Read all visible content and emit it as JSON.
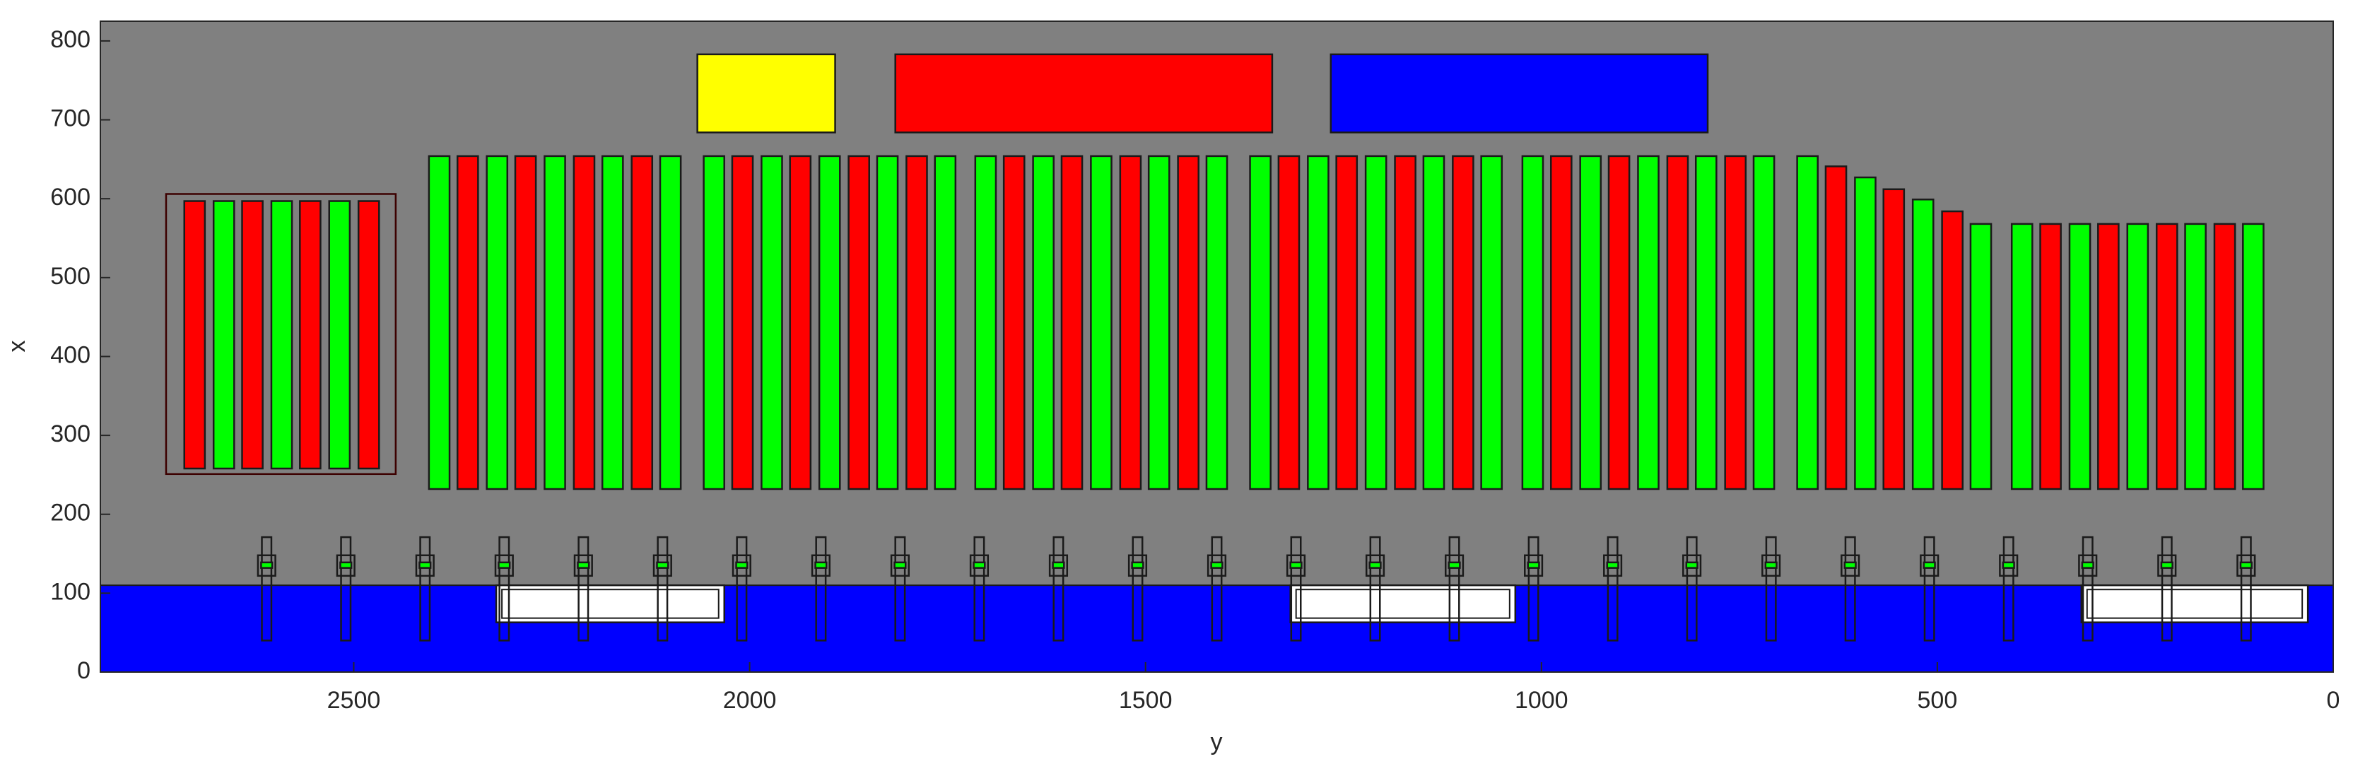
{
  "chart_data": {
    "type": "rectangles",
    "xlabel": "y",
    "ylabel": "x",
    "xlim": [
      0,
      2820
    ],
    "xreverse": true,
    "ylim": [
      0,
      825
    ],
    "xticks": [
      0,
      500,
      1000,
      1500,
      2000,
      2500
    ],
    "yticks": [
      0,
      100,
      200,
      300,
      400,
      500,
      600,
      700,
      800
    ],
    "background": "#808080",
    "rects": [
      {
        "x": [
          0,
          2820
        ],
        "y": [
          0,
          110
        ],
        "color": "#0000ff"
      },
      {
        "x": [
          2032,
          2320
        ],
        "y": [
          63,
          110
        ],
        "color": "#ffffff"
      },
      {
        "x": [
          1033,
          1317
        ],
        "y": [
          63,
          110
        ],
        "color": "#ffffff"
      },
      {
        "x": [
          32,
          318
        ],
        "y": [
          63,
          110
        ],
        "color": "#ffffff"
      },
      {
        "x": [
          1892,
          2066
        ],
        "y": [
          684,
          783
        ],
        "color": "#ffff00"
      },
      {
        "x": [
          1340,
          1816
        ],
        "y": [
          684,
          783
        ],
        "color": "#ff0000"
      },
      {
        "x": [
          790,
          1266
        ],
        "y": [
          684,
          783
        ],
        "color": "#0000ff"
      },
      {
        "x": [
          2447,
          2737
        ],
        "y": [
          251,
          606
        ],
        "color": "none"
      },
      {
        "x": [
          2688,
          2714
        ],
        "y": [
          258,
          597
        ],
        "color": "#ff0000"
      },
      {
        "x": [
          2651,
          2677
        ],
        "y": [
          258,
          597
        ],
        "color": "#00ff00"
      },
      {
        "x": [
          2615,
          2641
        ],
        "y": [
          258,
          597
        ],
        "color": "#ff0000"
      },
      {
        "x": [
          2578,
          2604
        ],
        "y": [
          258,
          597
        ],
        "color": "#00ff00"
      },
      {
        "x": [
          2542,
          2568
        ],
        "y": [
          258,
          597
        ],
        "color": "#ff0000"
      },
      {
        "x": [
          2505,
          2531
        ],
        "y": [
          258,
          597
        ],
        "color": "#00ff00"
      },
      {
        "x": [
          2468,
          2494
        ],
        "y": [
          258,
          597
        ],
        "color": "#ff0000"
      },
      {
        "x": [
          2379,
          2405
        ],
        "y": [
          232,
          654
        ],
        "color": "#00ff00"
      },
      {
        "x": [
          2343,
          2369
        ],
        "y": [
          232,
          654
        ],
        "color": "#ff0000"
      },
      {
        "x": [
          2306,
          2332
        ],
        "y": [
          232,
          654
        ],
        "color": "#00ff00"
      },
      {
        "x": [
          2270,
          2296
        ],
        "y": [
          232,
          654
        ],
        "color": "#ff0000"
      },
      {
        "x": [
          2233,
          2259
        ],
        "y": [
          232,
          654
        ],
        "color": "#00ff00"
      },
      {
        "x": [
          2196,
          2222
        ],
        "y": [
          232,
          654
        ],
        "color": "#ff0000"
      },
      {
        "x": [
          2160,
          2186
        ],
        "y": [
          232,
          654
        ],
        "color": "#00ff00"
      },
      {
        "x": [
          2123,
          2149
        ],
        "y": [
          232,
          654
        ],
        "color": "#ff0000"
      },
      {
        "x": [
          2087,
          2113
        ],
        "y": [
          232,
          654
        ],
        "color": "#00ff00"
      },
      {
        "x": [
          2032,
          2058
        ],
        "y": [
          232,
          654
        ],
        "color": "#00ff00"
      },
      {
        "x": [
          1996,
          2022
        ],
        "y": [
          232,
          654
        ],
        "color": "#ff0000"
      },
      {
        "x": [
          1959,
          1985
        ],
        "y": [
          232,
          654
        ],
        "color": "#00ff00"
      },
      {
        "x": [
          1923,
          1949
        ],
        "y": [
          232,
          654
        ],
        "color": "#ff0000"
      },
      {
        "x": [
          1886,
          1912
        ],
        "y": [
          232,
          654
        ],
        "color": "#00ff00"
      },
      {
        "x": [
          1849,
          1875
        ],
        "y": [
          232,
          654
        ],
        "color": "#ff0000"
      },
      {
        "x": [
          1813,
          1839
        ],
        "y": [
          232,
          654
        ],
        "color": "#00ff00"
      },
      {
        "x": [
          1776,
          1802
        ],
        "y": [
          232,
          654
        ],
        "color": "#ff0000"
      },
      {
        "x": [
          1740,
          1766
        ],
        "y": [
          232,
          654
        ],
        "color": "#00ff00"
      },
      {
        "x": [
          1689,
          1715
        ],
        "y": [
          232,
          654
        ],
        "color": "#00ff00"
      },
      {
        "x": [
          1653,
          1679
        ],
        "y": [
          232,
          654
        ],
        "color": "#ff0000"
      },
      {
        "x": [
          1616,
          1642
        ],
        "y": [
          232,
          654
        ],
        "color": "#00ff00"
      },
      {
        "x": [
          1580,
          1606
        ],
        "y": [
          232,
          654
        ],
        "color": "#ff0000"
      },
      {
        "x": [
          1543,
          1569
        ],
        "y": [
          232,
          654
        ],
        "color": "#00ff00"
      },
      {
        "x": [
          1506,
          1532
        ],
        "y": [
          232,
          654
        ],
        "color": "#ff0000"
      },
      {
        "x": [
          1470,
          1496
        ],
        "y": [
          232,
          654
        ],
        "color": "#00ff00"
      },
      {
        "x": [
          1433,
          1459
        ],
        "y": [
          232,
          654
        ],
        "color": "#ff0000"
      },
      {
        "x": [
          1397,
          1423
        ],
        "y": [
          232,
          654
        ],
        "color": "#00ff00"
      },
      {
        "x": [
          1342,
          1368
        ],
        "y": [
          232,
          654
        ],
        "color": "#00ff00"
      },
      {
        "x": [
          1306,
          1332
        ],
        "y": [
          232,
          654
        ],
        "color": "#ff0000"
      },
      {
        "x": [
          1269,
          1295
        ],
        "y": [
          232,
          654
        ],
        "color": "#00ff00"
      },
      {
        "x": [
          1233,
          1259
        ],
        "y": [
          232,
          654
        ],
        "color": "#ff0000"
      },
      {
        "x": [
          1196,
          1222
        ],
        "y": [
          232,
          654
        ],
        "color": "#00ff00"
      },
      {
        "x": [
          1159,
          1185
        ],
        "y": [
          232,
          654
        ],
        "color": "#ff0000"
      },
      {
        "x": [
          1123,
          1149
        ],
        "y": [
          232,
          654
        ],
        "color": "#00ff00"
      },
      {
        "x": [
          1086,
          1112
        ],
        "y": [
          232,
          654
        ],
        "color": "#ff0000"
      },
      {
        "x": [
          1050,
          1076
        ],
        "y": [
          232,
          654
        ],
        "color": "#00ff00"
      },
      {
        "x": [
          998,
          1024
        ],
        "y": [
          232,
          654
        ],
        "color": "#00ff00"
      },
      {
        "x": [
          962,
          988
        ],
        "y": [
          232,
          654
        ],
        "color": "#ff0000"
      },
      {
        "x": [
          925,
          951
        ],
        "y": [
          232,
          654
        ],
        "color": "#00ff00"
      },
      {
        "x": [
          889,
          915
        ],
        "y": [
          232,
          654
        ],
        "color": "#ff0000"
      },
      {
        "x": [
          852,
          878
        ],
        "y": [
          232,
          654
        ],
        "color": "#00ff00"
      },
      {
        "x": [
          815,
          841
        ],
        "y": [
          232,
          654
        ],
        "color": "#ff0000"
      },
      {
        "x": [
          779,
          805
        ],
        "y": [
          232,
          654
        ],
        "color": "#00ff00"
      },
      {
        "x": [
          742,
          768
        ],
        "y": [
          232,
          654
        ],
        "color": "#ff0000"
      },
      {
        "x": [
          706,
          732
        ],
        "y": [
          232,
          654
        ],
        "color": "#00ff00"
      },
      {
        "x": [
          651,
          677
        ],
        "y": [
          232,
          654
        ],
        "color": "#00ff00"
      },
      {
        "x": [
          615,
          641
        ],
        "y": [
          232,
          641
        ],
        "color": "#ff0000"
      },
      {
        "x": [
          578,
          604
        ],
        "y": [
          232,
          627
        ],
        "color": "#00ff00"
      },
      {
        "x": [
          542,
          568
        ],
        "y": [
          232,
          612
        ],
        "color": "#ff0000"
      },
      {
        "x": [
          505,
          531
        ],
        "y": [
          232,
          599
        ],
        "color": "#00ff00"
      },
      {
        "x": [
          468,
          494
        ],
        "y": [
          232,
          584
        ],
        "color": "#ff0000"
      },
      {
        "x": [
          432,
          458
        ],
        "y": [
          232,
          568
        ],
        "color": "#00ff00"
      },
      {
        "x": [
          380,
          406
        ],
        "y": [
          232,
          568
        ],
        "color": "#00ff00"
      },
      {
        "x": [
          344,
          370
        ],
        "y": [
          232,
          568
        ],
        "color": "#ff0000"
      },
      {
        "x": [
          307,
          333
        ],
        "y": [
          232,
          568
        ],
        "color": "#00ff00"
      },
      {
        "x": [
          271,
          297
        ],
        "y": [
          232,
          568
        ],
        "color": "#ff0000"
      },
      {
        "x": [
          234,
          260
        ],
        "y": [
          232,
          568
        ],
        "color": "#00ff00"
      },
      {
        "x": [
          197,
          223
        ],
        "y": [
          232,
          568
        ],
        "color": "#ff0000"
      },
      {
        "x": [
          161,
          187
        ],
        "y": [
          232,
          568
        ],
        "color": "#00ff00"
      },
      {
        "x": [
          124,
          150
        ],
        "y": [
          232,
          568
        ],
        "color": "#ff0000"
      },
      {
        "x": [
          88,
          114
        ],
        "y": [
          232,
          568
        ],
        "color": "#00ff00"
      }
    ],
    "posts": {
      "centers": [
        2610,
        2510,
        2410,
        2310,
        2210,
        2110,
        2010,
        1910,
        1810,
        1710,
        1610,
        1510,
        1410,
        1310,
        1210,
        1110,
        1010,
        910,
        810,
        710,
        610,
        510,
        410,
        310,
        210,
        110
      ],
      "stem": {
        "half_width": 6,
        "y": [
          40,
          171
        ]
      },
      "box": {
        "half_width": 11,
        "y": [
          122,
          148
        ]
      },
      "core": {
        "half_width": 7,
        "y": [
          132,
          139
        ],
        "color": "#00ff00"
      }
    }
  }
}
